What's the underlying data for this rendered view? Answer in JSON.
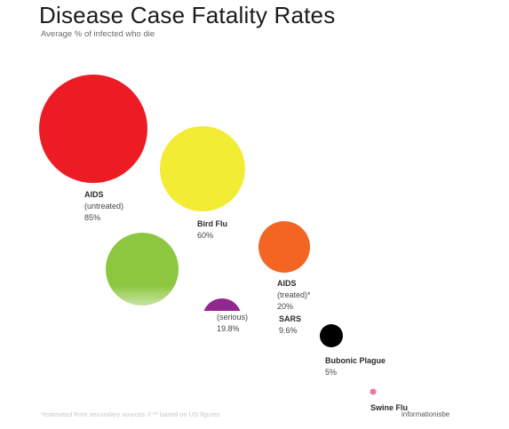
{
  "header": {
    "title": "Disease Case Fatality Rates",
    "subtitle": "Average % of infected who die"
  },
  "footer": {
    "footnote": "*estimated from secondary sources // ** based on US figures",
    "credit": "informationisbe"
  },
  "chart_data": {
    "type": "bubble",
    "title": "Disease Case Fatality Rates",
    "subtitle": "Average % of infected who die",
    "unit": "%",
    "series": [
      {
        "name": "AIDS",
        "note": "(untreated)",
        "value": 85,
        "value_label": "85%",
        "color": "#ed1c24"
      },
      {
        "name": "Bird Flu",
        "note": "",
        "value": 60,
        "value_label": "60%",
        "color": "#f3ec35"
      },
      {
        "name": "",
        "note": "(serious)",
        "value": 19.8,
        "value_label": "19.8%",
        "color": "#8dc63f"
      },
      {
        "name": "AIDS",
        "note": "(treated)*",
        "value": 20,
        "value_label": "20%",
        "color": "#f26522"
      },
      {
        "name": "SARS",
        "note": "",
        "value": 9.6,
        "value_label": "9.6%",
        "color": "#92278f"
      },
      {
        "name": "Bubonic Plague",
        "note": "",
        "value": 5,
        "value_label": "5%",
        "color": "#000000"
      },
      {
        "name": "Swine Flu",
        "note": "",
        "value": 0.1,
        "value_label": "",
        "color": "#ee77aa"
      }
    ]
  }
}
